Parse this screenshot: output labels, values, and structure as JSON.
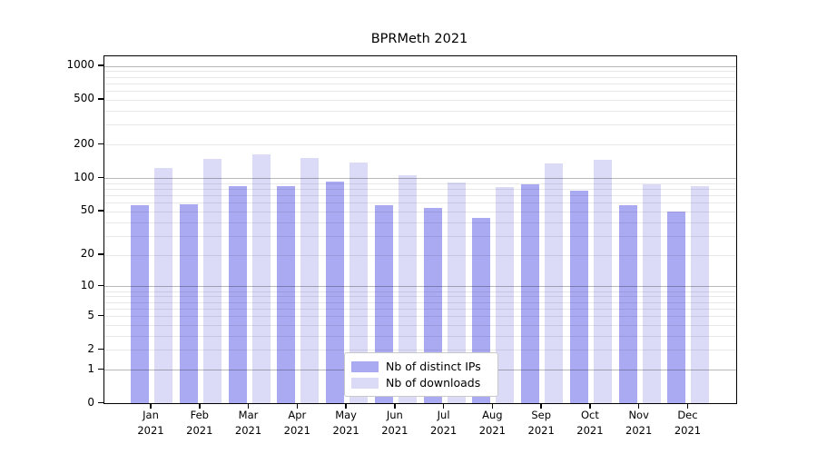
{
  "chart_data": {
    "type": "bar",
    "title": "BPRMeth 2021",
    "categories": [
      "Jan 2021",
      "Feb 2021",
      "Mar 2021",
      "Apr 2021",
      "May 2021",
      "Jun 2021",
      "Jul 2021",
      "Aug 2021",
      "Sep 2021",
      "Oct 2021",
      "Nov 2021",
      "Dec 2021"
    ],
    "series": [
      {
        "name": "Nb of distinct IPs",
        "color": "#aaaaf2",
        "values": [
          57,
          58,
          85,
          84,
          93,
          57,
          54,
          44,
          88,
          77,
          57,
          50
        ]
      },
      {
        "name": "Nb of downloads",
        "color": "#dbdbf8",
        "values": [
          124,
          148,
          162,
          151,
          138,
          106,
          92,
          83,
          136,
          145,
          87,
          85
        ]
      }
    ],
    "xlabel": "",
    "ylabel": "",
    "yscale": "log(value+1)",
    "ylim": [
      0,
      1190
    ],
    "yticks": [
      0,
      1,
      2,
      5,
      10,
      20,
      50,
      100,
      200,
      500,
      1000
    ],
    "grid": {
      "major_lines_at": [
        1,
        10,
        100,
        1000
      ],
      "minor_lines": "2-9 per decade",
      "drawn_over_bars": true
    },
    "legend": {
      "position": "lower center",
      "border_color": "#c9c9c9",
      "background": "#ffffff"
    },
    "frame_color": "#000000",
    "background": "#ffffff"
  }
}
